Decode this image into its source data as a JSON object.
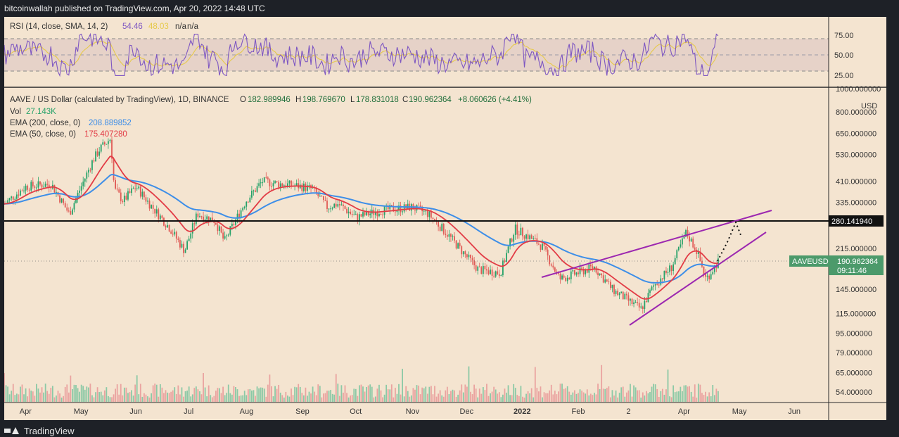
{
  "header": {
    "publisher_line": "bitcoinwallah published on TradingView.com, Apr 20, 2022 14:48 UTC"
  },
  "footer": {
    "brand": "TradingView"
  },
  "colors": {
    "bg_dark": "#1e2127",
    "chart_bg": "#f4e4d0",
    "up": "#26a269",
    "down": "#e05a55",
    "ema200": "#3d8ee8",
    "ema50": "#e23b45",
    "rsi": "#7e57c2",
    "rsi_sma": "#e6c94a",
    "channel": "#9c27b0",
    "hline": "#111111",
    "tag_green": "#4c9a6b"
  },
  "rsi_panel": {
    "label": "RSI (14, close, SMA, 14, 2)",
    "value": "54.46",
    "sma_value": "48.03",
    "na1": "n/a",
    "na2": "n/a",
    "levels": [
      "75.00",
      "50.00",
      "25.00"
    ]
  },
  "legend": {
    "title": "AAVE / US Dollar (calculated by TradingView), 1D, BINANCE",
    "o_label": "O",
    "o": "182.989946",
    "h_label": "H",
    "h": "198.769670",
    "l_label": "L",
    "l": "178.831018",
    "c_label": "C",
    "c": "190.962364",
    "change": "+8.060626 (+4.41%)",
    "vol_label": "Vol",
    "vol": "27.143K",
    "ema200_label": "EMA (200, close, 0)",
    "ema200": "208.889852",
    "ema50_label": "EMA (50, close, 0)",
    "ema50": "175.407280"
  },
  "price_axis": {
    "currency": "USD",
    "ticks": [
      "1000.000000",
      "800.000000",
      "650.000000",
      "530.000000",
      "410.000000",
      "335.000000",
      "280.141940",
      "215.000000",
      "190.962364",
      "145.000000",
      "115.000000",
      "95.000000",
      "79.000000",
      "65.000000",
      "54.000000"
    ]
  },
  "tags": {
    "level": "280.141940",
    "symbol": "AAVEUSD",
    "last": "190.962364",
    "countdown": "09:11:46"
  },
  "time_axis": [
    "Apr",
    "May",
    "Jun",
    "Jul",
    "Aug",
    "Sep",
    "Oct",
    "Nov",
    "Dec",
    "2022",
    "Feb",
    "2",
    "Apr",
    "May",
    "Jun"
  ],
  "chart_data": {
    "type": "candlestick",
    "symbol": "AAVEUSD",
    "interval": "1D",
    "exchange": "BINANCE",
    "y_scale": "log",
    "ylim": [
      50,
      1050
    ],
    "x_range": [
      "2021-03-20",
      "2022-06-20"
    ],
    "resampled_close": [
      [
        "2021-03-20",
        330
      ],
      [
        "2021-04-01",
        390
      ],
      [
        "2021-04-15",
        400
      ],
      [
        "2021-04-25",
        300
      ],
      [
        "2021-05-01",
        380
      ],
      [
        "2021-05-08",
        500
      ],
      [
        "2021-05-12",
        560
      ],
      [
        "2021-05-18",
        620
      ],
      [
        "2021-05-20",
        380
      ],
      [
        "2021-05-25",
        340
      ],
      [
        "2021-06-01",
        390
      ],
      [
        "2021-06-10",
        320
      ],
      [
        "2021-06-20",
        260
      ],
      [
        "2021-06-28",
        210
      ],
      [
        "2021-07-05",
        300
      ],
      [
        "2021-07-15",
        280
      ],
      [
        "2021-07-20",
        230
      ],
      [
        "2021-08-01",
        340
      ],
      [
        "2021-08-10",
        410
      ],
      [
        "2021-08-20",
        400
      ],
      [
        "2021-09-01",
        390
      ],
      [
        "2021-09-07",
        380
      ],
      [
        "2021-09-15",
        320
      ],
      [
        "2021-09-21",
        330
      ],
      [
        "2021-10-01",
        290
      ],
      [
        "2021-10-15",
        310
      ],
      [
        "2021-11-01",
        320
      ],
      [
        "2021-11-10",
        300
      ],
      [
        "2021-11-20",
        250
      ],
      [
        "2021-12-01",
        200
      ],
      [
        "2021-12-08",
        175
      ],
      [
        "2021-12-20",
        170
      ],
      [
        "2021-12-28",
        260
      ],
      [
        "2022-01-05",
        240
      ],
      [
        "2022-01-12",
        220
      ],
      [
        "2022-01-22",
        160
      ],
      [
        "2022-02-01",
        170
      ],
      [
        "2022-02-10",
        180
      ],
      [
        "2022-02-20",
        145
      ],
      [
        "2022-03-01",
        130
      ],
      [
        "2022-03-08",
        120
      ],
      [
        "2022-03-15",
        150
      ],
      [
        "2022-03-25",
        180
      ],
      [
        "2022-04-02",
        250
      ],
      [
        "2022-04-08",
        210
      ],
      [
        "2022-04-13",
        160
      ],
      [
        "2022-04-20",
        190.96
      ]
    ],
    "series": [
      {
        "name": "EMA (200, close, 0)",
        "last": 208.889852
      },
      {
        "name": "EMA (50, close, 0)",
        "last": 175.40728
      }
    ],
    "horizontal_level": 280.14194,
    "projection_target": 280.14194
  }
}
